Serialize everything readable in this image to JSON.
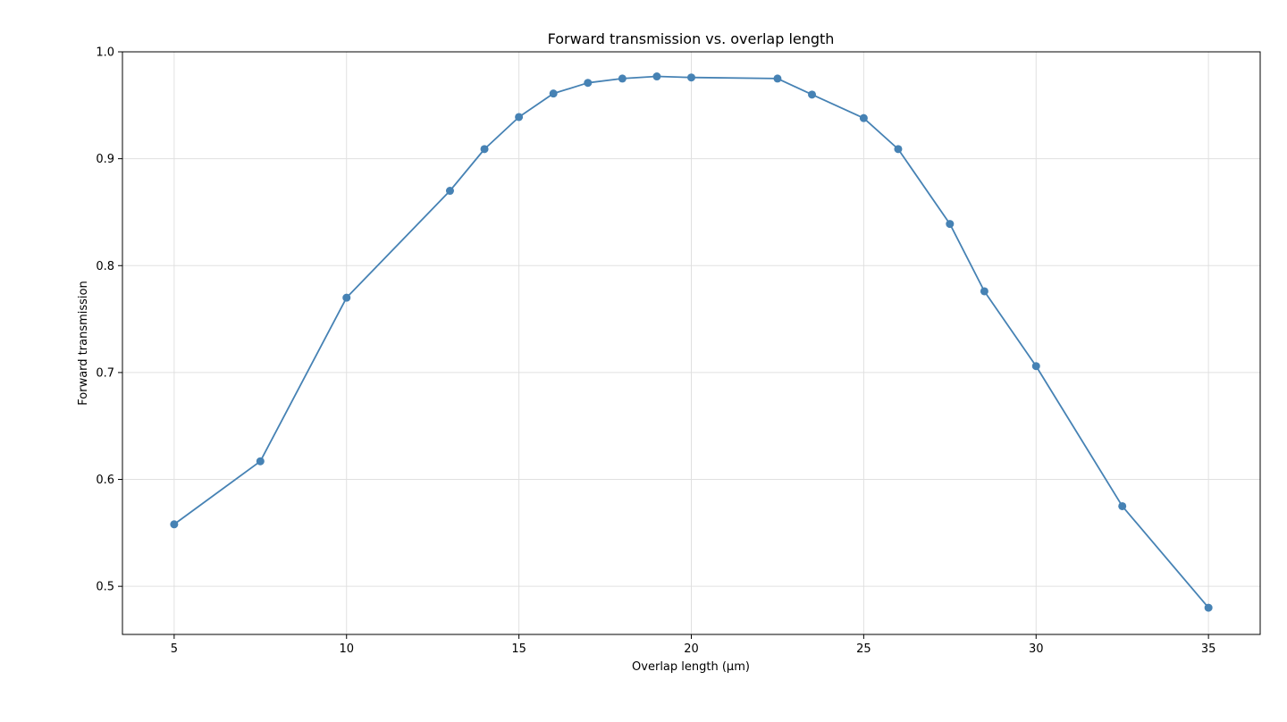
{
  "chart_data": {
    "type": "line",
    "title": "Forward transmission vs. overlap length",
    "xlabel": "Overlap length (μm)",
    "ylabel": "Forward transmission",
    "xlim": [
      3.5,
      36.5
    ],
    "ylim": [
      0.455,
      1.0
    ],
    "grid": true,
    "x_ticks": [
      5,
      10,
      15,
      20,
      25,
      30,
      35
    ],
    "y_ticks": [
      0.5,
      0.6,
      0.7,
      0.8,
      0.9,
      1.0
    ],
    "x_tick_labels": [
      "5",
      "10",
      "15",
      "20",
      "25",
      "30",
      "35"
    ],
    "y_tick_labels": [
      "0.5",
      "0.6",
      "0.7",
      "0.8",
      "0.9",
      "1.0"
    ],
    "colors": {
      "series": "#4682b4",
      "grid": "#e0e0e0",
      "axes": "#000000"
    },
    "series": [
      {
        "x": [
          5,
          7.5,
          10,
          13,
          14,
          15,
          16,
          17,
          18,
          19,
          20,
          22.5,
          23.5,
          25,
          26,
          27.5,
          28.5,
          30,
          32.5,
          35
        ],
        "values": [
          0.558,
          0.617,
          0.77,
          0.87,
          0.909,
          0.939,
          0.961,
          0.971,
          0.975,
          0.977,
          0.976,
          0.975,
          0.96,
          0.938,
          0.909,
          0.839,
          0.776,
          0.706,
          0.575,
          0.48
        ]
      }
    ]
  }
}
